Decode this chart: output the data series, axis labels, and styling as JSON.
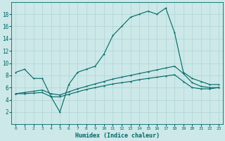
{
  "xlabel": "Humidex (Indice chaleur)",
  "bg_color": "#cce8e8",
  "grid_color": "#b0d4d4",
  "line_color": "#006666",
  "xlim": [
    -0.5,
    23.5
  ],
  "ylim": [
    0,
    20
  ],
  "yticks": [
    2,
    4,
    6,
    8,
    10,
    12,
    14,
    16,
    18
  ],
  "xticks": [
    0,
    1,
    2,
    3,
    4,
    5,
    6,
    7,
    8,
    9,
    10,
    11,
    12,
    13,
    14,
    15,
    16,
    17,
    18,
    19,
    20,
    21,
    22,
    23
  ],
  "line1_x": [
    0,
    1,
    2,
    3,
    4,
    5,
    6,
    7,
    8,
    9,
    10,
    11,
    12,
    13,
    14,
    15,
    16,
    17,
    18,
    19,
    20,
    21,
    22,
    23
  ],
  "line1_y": [
    8.5,
    9.0,
    7.5,
    7.5,
    4.5,
    2.0,
    6.5,
    8.5,
    9.0,
    9.5,
    11.5,
    14.5,
    16.0,
    17.5,
    18.0,
    18.5,
    18.0,
    19.0,
    15.0,
    8.5,
    7.5,
    7.0,
    6.5,
    6.5
  ],
  "line2_x": [
    0,
    1,
    2,
    3,
    4,
    5,
    6,
    7,
    8,
    9,
    10,
    11,
    12,
    13,
    14,
    15,
    16,
    17,
    18,
    19,
    20,
    21,
    22,
    23
  ],
  "line2_y": [
    5.0,
    5.2,
    5.4,
    5.6,
    5.0,
    4.8,
    5.3,
    5.8,
    6.2,
    6.6,
    7.0,
    7.4,
    7.7,
    8.0,
    8.3,
    8.6,
    8.9,
    9.2,
    9.5,
    8.3,
    6.8,
    6.2,
    6.0,
    6.0
  ],
  "line3_x": [
    0,
    1,
    2,
    3,
    4,
    5,
    6,
    7,
    8,
    9,
    10,
    11,
    12,
    13,
    14,
    15,
    16,
    17,
    18,
    19,
    20,
    21,
    22,
    23
  ],
  "line3_y": [
    5.0,
    5.0,
    5.1,
    5.2,
    4.5,
    4.5,
    4.9,
    5.3,
    5.7,
    6.0,
    6.3,
    6.6,
    6.8,
    7.0,
    7.3,
    7.5,
    7.7,
    7.9,
    8.1,
    7.0,
    6.0,
    5.8,
    5.8,
    6.0
  ],
  "marker": "*",
  "markersize": 2.5,
  "linewidth": 0.8
}
